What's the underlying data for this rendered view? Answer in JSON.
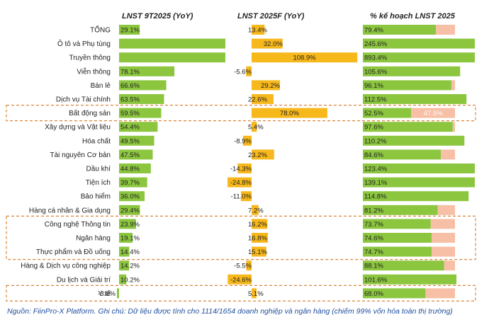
{
  "headers": {
    "col1": "LNST 9T2025 (YoY)",
    "col2": "LNST 2025F (YoY)",
    "col3": "% kế hoạch LNST 2025"
  },
  "footnote": "Nguồn: FiinPro-X Platform. Ghi chú: Dữ liệu được tính cho 1114/1654 doanh nghiệp và ngân hàng (chiếm 99% vốn hóa toàn thị trường)",
  "colors": {
    "green": "#8cc63f",
    "orange": "#f7b81c",
    "salmon": "#f7bfa5",
    "highlight_border": "#d9863b"
  },
  "highlight_groups": [
    {
      "categories": [
        "Bất động sản"
      ]
    },
    {
      "categories": [
        "Công nghệ Thông tin",
        "Ngân hàng",
        "Thực phẩm và Đồ uống"
      ]
    },
    {
      "categories": [
        "Y tế"
      ]
    }
  ],
  "chart_data": [
    {
      "type": "bar",
      "orientation": "horizontal",
      "title": "LNST 9T2025 (YoY)",
      "categories": [
        "TỔNG",
        "Ô tô và Phụ tùng",
        "Truyền thông",
        "Viễn thông",
        "Bán lẻ",
        "Dịch vụ Tài chính",
        "Bất động sản",
        "Xây dựng và Vật liệu",
        "Hóa chất",
        "Tài nguyên Cơ bản",
        "Dầu khí",
        "Tiện ích",
        "Bảo hiểm",
        "Hàng cá nhân & Gia dụng",
        "Công nghệ Thông tin",
        "Ngân hàng",
        "Thực phẩm và Đồ uống",
        "Hàng & Dịch vụ công nghiệp",
        "Du lịch và Giải trí",
        "Y tế"
      ],
      "values": [
        29.1,
        null,
        null,
        78.1,
        66.6,
        63.5,
        59.5,
        54.4,
        49.5,
        47.5,
        44.8,
        39.7,
        36.0,
        29.4,
        23.9,
        19.1,
        14.4,
        14.2,
        10.2,
        -3.0
      ],
      "labels": [
        "29.1%",
        "",
        "",
        "78.1%",
        "66.6%",
        "63.5%",
        "59.5%",
        "54.4%",
        "49.5%",
        "47.5%",
        "44.8%",
        "39.7%",
        "36.0%",
        "29.4%",
        "23.9%",
        "19.1%",
        "14.4%",
        "14.2%",
        "10.2%",
        "-3.0%"
      ],
      "truncated_categories": [
        "Ô tô và Phụ tùng",
        "Truyền thông"
      ],
      "color": "#8cc63f"
    },
    {
      "type": "bar",
      "orientation": "horizontal",
      "title": "LNST 2025F (YoY)",
      "categories": [
        "TỔNG",
        "Ô tô và Phụ tùng",
        "Truyền thông",
        "Viễn thông",
        "Bán lẻ",
        "Dịch vụ Tài chính",
        "Bất động sản",
        "Xây dựng và Vật liệu",
        "Hóa chất",
        "Tài nguyên Cơ bản",
        "Dầu khí",
        "Tiện ích",
        "Bảo hiểm",
        "Hàng cá nhân & Gia dụng",
        "Công nghệ Thông tin",
        "Ngân hàng",
        "Thực phẩm và Đồ uống",
        "Hàng & Dịch vụ công nghiệp",
        "Du lịch và Giải trí",
        "Y tế"
      ],
      "values": [
        13.4,
        32.0,
        108.9,
        -5.6,
        29.2,
        22.6,
        78.0,
        5.4,
        -8.9,
        23.2,
        -14.3,
        -24.8,
        -11.0,
        7.2,
        16.2,
        16.8,
        15.1,
        -5.5,
        -24.6,
        5.1
      ],
      "labels": [
        "13.4%",
        "32.0%",
        "108.9%",
        "-5.6%",
        "29.2%",
        "22.6%",
        "78.0%",
        "5.4%",
        "-8.9%",
        "23.2%",
        "-14.3%",
        "-24.8%",
        "-11.0%",
        "7.2%",
        "16.2%",
        "16.8%",
        "15.1%",
        "-5.5%",
        "-24.6%",
        "5.1%"
      ],
      "color": "#f7b81c"
    },
    {
      "type": "bar",
      "orientation": "horizontal",
      "stacked": true,
      "title": "% kế hoạch LNST 2025",
      "categories": [
        "TỔNG",
        "Ô tô và Phụ tùng",
        "Truyền thông",
        "Viễn thông",
        "Bán lẻ",
        "Dịch vụ Tài chính",
        "Bất động sản",
        "Xây dựng và Vật liệu",
        "Hóa chất",
        "Tài nguyên Cơ bản",
        "Dầu khí",
        "Tiện ích",
        "Bảo hiểm",
        "Hàng cá nhân & Gia dụng",
        "Công nghệ Thông tin",
        "Ngân hàng",
        "Thực phẩm và Đồ uống",
        "Hàng & Dịch vụ công nghiệp",
        "Du lịch và Giải trí",
        "Y tế"
      ],
      "values": [
        79.4,
        245.6,
        893.4,
        105.6,
        96.1,
        112.5,
        52.5,
        97.6,
        110.2,
        84.6,
        123.4,
        139.1,
        114.8,
        81.2,
        73.7,
        74.6,
        74.7,
        88.1,
        101.6,
        68.0
      ],
      "labels": [
        "79.4%",
        "245.6%",
        "893.4%",
        "105.6%",
        "96.1%",
        "112.5%",
        "52.5%",
        "97.6%",
        "110.2%",
        "84.6%",
        "123.4%",
        "139.1%",
        "114.8%",
        "81.2%",
        "73.7%",
        "74.6%",
        "74.7%",
        "88.1%",
        "101.6%",
        "68.0%"
      ],
      "remainder_labels": {
        "Bất động sản": "47.5%"
      },
      "color": "#8cc63f",
      "remainder_color": "#f7bfa5"
    }
  ]
}
